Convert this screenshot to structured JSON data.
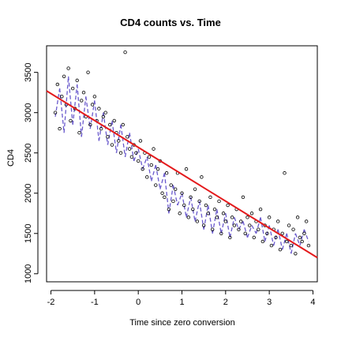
{
  "chart_data": {
    "type": "line",
    "title": "CD4 counts vs. Time",
    "xlabel": "Time since zero conversion",
    "ylabel": "CD4",
    "xlim": [
      -2.1,
      4.1
    ],
    "ylim": [
      900,
      3830
    ],
    "x_ticks": [
      -2,
      -1,
      0,
      1,
      2,
      3,
      4
    ],
    "y_ticks": [
      1000,
      1500,
      2000,
      2500,
      3000,
      3500
    ],
    "grid": false,
    "legend": "none",
    "colors": {
      "points": "#000000",
      "subject_lines": "#6a5acd",
      "fit": "#e41a1c"
    },
    "series": [
      {
        "style": "points",
        "x": [
          -1.9,
          -1.85,
          -1.8,
          -1.75,
          -1.7,
          -1.65,
          -1.6,
          -1.55,
          -1.5,
          -1.45,
          -1.4,
          -1.35,
          -1.3,
          -1.25,
          -1.2,
          -1.15,
          -1.1,
          -1.05,
          -1.0,
          -0.95,
          -0.9,
          -0.85,
          -0.8,
          -0.75,
          -0.7,
          -0.65,
          -0.6,
          -0.55,
          -0.5,
          -0.45,
          -0.4,
          -0.35,
          -0.3,
          -0.25,
          -0.2,
          -0.15,
          -0.1,
          -0.05,
          0.0,
          0.05,
          0.1,
          0.15,
          0.2,
          0.25,
          0.3,
          0.35,
          0.4,
          0.45,
          0.5,
          0.55,
          0.6,
          0.65,
          0.7,
          0.75,
          0.8,
          0.85,
          0.9,
          0.95,
          1.0,
          1.05,
          1.1,
          1.15,
          1.2,
          1.25,
          1.3,
          1.35,
          1.4,
          1.45,
          1.5,
          1.55,
          1.6,
          1.65,
          1.7,
          1.75,
          1.8,
          1.85,
          1.9,
          1.95,
          2.0,
          2.05,
          2.1,
          2.15,
          2.2,
          2.25,
          2.3,
          2.35,
          2.4,
          2.45,
          2.5,
          2.55,
          2.6,
          2.65,
          2.7,
          2.75,
          2.8,
          2.85,
          2.9,
          2.95,
          3.0,
          3.05,
          3.1,
          3.15,
          3.2,
          3.25,
          3.3,
          3.35,
          3.4,
          3.45,
          3.5,
          3.55,
          3.6,
          3.65,
          3.7,
          3.75,
          3.8,
          3.85,
          3.9
        ],
        "y": [
          3000,
          3350,
          2800,
          3200,
          3450,
          3100,
          3550,
          2900,
          3300,
          3050,
          3400,
          2750,
          3150,
          3250,
          2950,
          3500,
          2850,
          3100,
          3200,
          2900,
          3050,
          2800,
          2950,
          3000,
          2700,
          2850,
          2600,
          2900,
          2750,
          2650,
          2500,
          2850,
          3750,
          2700,
          2550,
          2450,
          2600,
          2500,
          2400,
          2650,
          2300,
          2500,
          2200,
          2450,
          2350,
          2550,
          2100,
          2300,
          2400,
          2000,
          1950,
          2250,
          1800,
          2100,
          1900,
          2050,
          2250,
          1750,
          2000,
          1850,
          2300,
          1700,
          1950,
          1800,
          2050,
          1650,
          1900,
          2200,
          1600,
          1850,
          1750,
          1950,
          1550,
          1800,
          1700,
          1900,
          1500,
          1750,
          1650,
          1850,
          1450,
          1700,
          1600,
          1800,
          1550,
          1650,
          1950,
          1500,
          1700,
          1600,
          1750,
          1450,
          1650,
          1550,
          1800,
          1400,
          1600,
          1500,
          1700,
          1350,
          1550,
          1450,
          1650,
          1300,
          1500,
          2250,
          1400,
          1600,
          1350,
          1550,
          1250,
          1700,
          1450,
          1400,
          1500,
          1650,
          1350
        ]
      },
      {
        "style": "subject-lines",
        "x": [
          -1.9,
          -1.8,
          -1.7,
          -1.6,
          -1.5,
          -1.4,
          -1.3,
          -1.2,
          -1.1,
          -1.0,
          -0.9,
          -0.8,
          -0.7,
          -0.6,
          -0.5,
          -0.4,
          -0.3,
          -0.2,
          -0.1,
          0.0,
          0.1,
          0.2,
          0.3,
          0.4,
          0.5,
          0.6,
          0.7,
          0.8,
          0.9,
          1.0,
          1.1,
          1.2,
          1.3,
          1.4,
          1.5,
          1.6,
          1.7,
          1.8,
          1.9,
          2.0,
          2.1,
          2.2,
          2.3,
          2.4,
          2.5,
          2.6,
          2.7,
          2.8,
          2.9,
          3.0,
          3.1,
          3.2,
          3.3,
          3.4,
          3.5,
          3.6,
          3.7,
          3.8,
          3.9
        ],
        "y": [
          2950,
          3300,
          2750,
          3450,
          2850,
          3350,
          2700,
          3200,
          2800,
          3150,
          2650,
          3000,
          2600,
          2900,
          2500,
          2850,
          2450,
          2750,
          2400,
          2550,
          2300,
          2450,
          2150,
          2350,
          2050,
          2250,
          1750,
          2100,
          1850,
          2000,
          1700,
          1950,
          1650,
          1900,
          1550,
          1850,
          1500,
          1800,
          1500,
          1750,
          1450,
          1700,
          1550,
          1650,
          1450,
          1600,
          1500,
          1700,
          1400,
          1600,
          1350,
          1550,
          1300,
          1500,
          1250,
          1500,
          1350,
          1550,
          1400
        ]
      },
      {
        "style": "fit-line",
        "x": [
          -2.1,
          4.1
        ],
        "y": [
          3270,
          1200
        ]
      }
    ]
  }
}
